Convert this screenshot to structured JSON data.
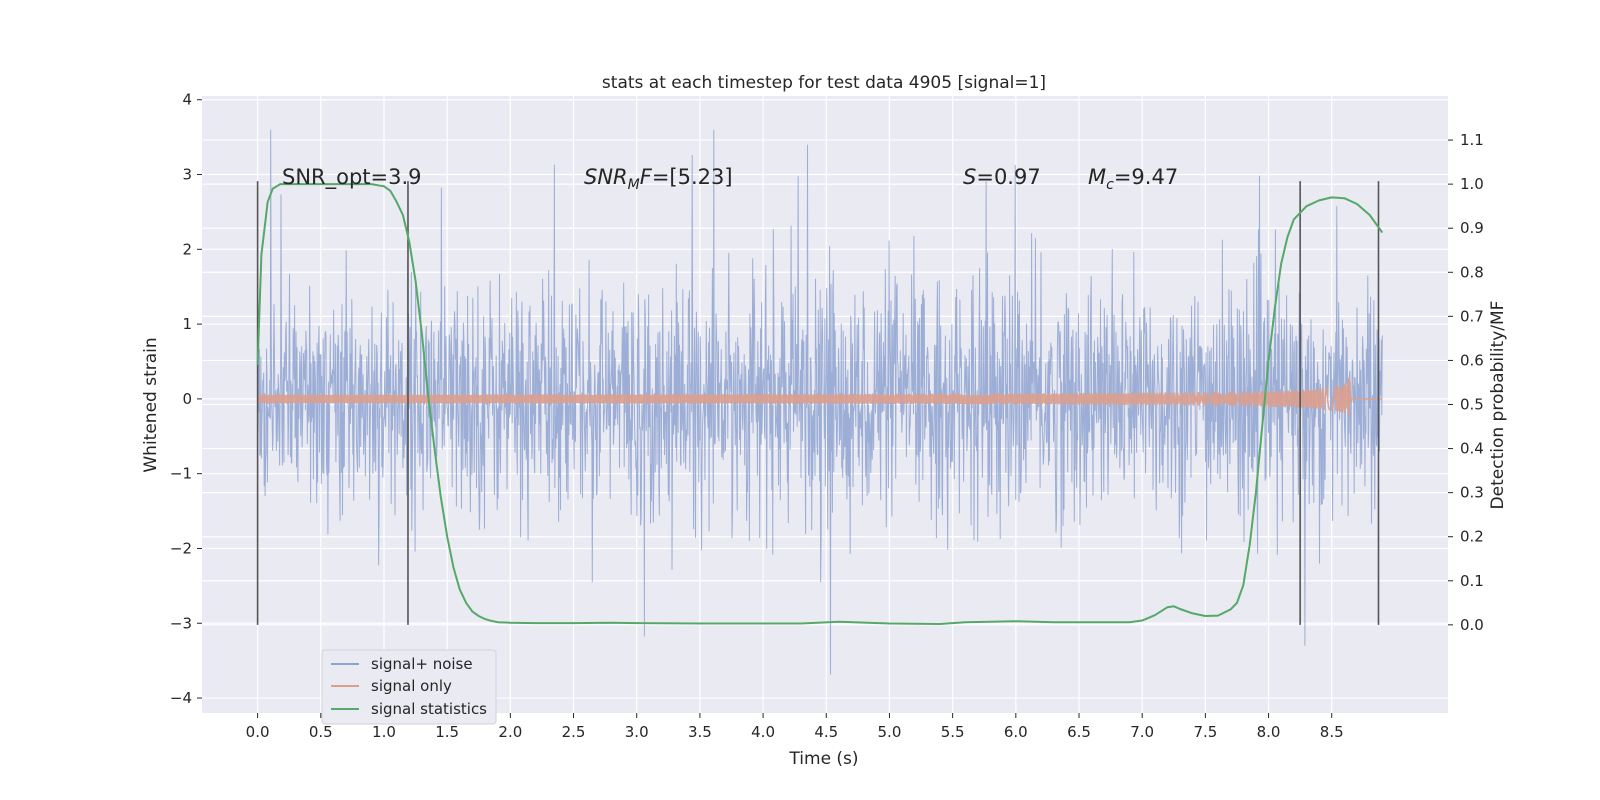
{
  "chart_data": {
    "type": "line",
    "title": "stats at each timestep for test data 4905 [signal=1]",
    "xlabel": "Time (s)",
    "ylabel": "Whitened strain",
    "ylabel_right": "Detection probability/MF",
    "xlim": [
      -0.44,
      9.42
    ],
    "ylim": [
      -4.2,
      4.05
    ],
    "ylim_right": [
      -0.2,
      1.2
    ],
    "x_ticks": [
      0.0,
      0.5,
      1.0,
      1.5,
      2.0,
      2.5,
      3.0,
      3.5,
      4.0,
      4.5,
      5.0,
      5.5,
      6.0,
      6.5,
      7.0,
      7.5,
      8.0,
      8.5
    ],
    "x_tick_labels": [
      "0.0",
      "0.5",
      "1.0",
      "1.5",
      "2.0",
      "2.5",
      "3.0",
      "3.5",
      "4.0",
      "4.5",
      "5.0",
      "5.5",
      "6.0",
      "6.5",
      "7.0",
      "7.5",
      "8.0",
      "8.5"
    ],
    "y_ticks": [
      -4,
      -3,
      -2,
      -1,
      0,
      1,
      2,
      3,
      4
    ],
    "y_tick_labels": [
      "−4",
      "−3",
      "−2",
      "−1",
      "0",
      "1",
      "2",
      "3",
      "4"
    ],
    "y_ticks_right": [
      0.0,
      0.1,
      0.2,
      0.3,
      0.4,
      0.5,
      0.6,
      0.7,
      0.8,
      0.9,
      1.0,
      1.1
    ],
    "y_tick_labels_right": [
      "0.0",
      "0.1",
      "0.2",
      "0.3",
      "0.4",
      "0.5",
      "0.6",
      "0.7",
      "0.8",
      "0.9",
      "1.0",
      "1.1"
    ],
    "grid": true,
    "legend_position": "bottom-left",
    "series": [
      {
        "name": "signal+ noise",
        "axis": "left",
        "color": "#8fa3d1",
        "kind": "noise",
        "x_range": [
          0.0,
          8.9
        ],
        "typical_range": [
          -1.3,
          1.3
        ],
        "extremes": [
          -4.0,
          3.6
        ]
      },
      {
        "name": "signal only",
        "axis": "left",
        "color": "#dc9f8e",
        "kind": "chirp",
        "x_range": [
          0.0,
          8.9
        ],
        "merger_time": 8.65,
        "peak_amplitude": 0.6
      },
      {
        "name": "signal statistics",
        "axis": "right",
        "color": "#55a868",
        "kind": "line",
        "x": [
          0.0,
          0.03,
          0.08,
          0.12,
          0.18,
          0.3,
          0.5,
          0.7,
          0.9,
          1.0,
          1.05,
          1.1,
          1.15,
          1.2,
          1.25,
          1.3,
          1.35,
          1.4,
          1.45,
          1.5,
          1.55,
          1.6,
          1.65,
          1.7,
          1.75,
          1.8,
          1.85,
          1.9,
          2.0,
          2.2,
          2.5,
          2.8,
          3.0,
          3.5,
          4.0,
          4.3,
          4.6,
          5.0,
          5.4,
          5.6,
          6.0,
          6.3,
          6.6,
          6.9,
          7.0,
          7.1,
          7.2,
          7.25,
          7.3,
          7.4,
          7.5,
          7.6,
          7.7,
          7.75,
          7.8,
          7.85,
          7.9,
          7.95,
          8.0,
          8.05,
          8.1,
          8.15,
          8.2,
          8.3,
          8.4,
          8.5,
          8.6,
          8.7,
          8.8,
          8.9
        ],
        "y": [
          0.59,
          0.84,
          0.96,
          0.99,
          1.0,
          1.0,
          1.0,
          1.0,
          1.0,
          0.995,
          0.985,
          0.96,
          0.93,
          0.87,
          0.78,
          0.66,
          0.52,
          0.4,
          0.29,
          0.2,
          0.13,
          0.08,
          0.05,
          0.03,
          0.02,
          0.013,
          0.009,
          0.006,
          0.005,
          0.004,
          0.004,
          0.005,
          0.004,
          0.003,
          0.003,
          0.003,
          0.007,
          0.003,
          0.002,
          0.006,
          0.008,
          0.006,
          0.006,
          0.006,
          0.01,
          0.022,
          0.04,
          0.042,
          0.036,
          0.026,
          0.02,
          0.021,
          0.035,
          0.05,
          0.09,
          0.18,
          0.3,
          0.45,
          0.6,
          0.72,
          0.82,
          0.88,
          0.92,
          0.95,
          0.963,
          0.97,
          0.968,
          0.955,
          0.93,
          0.89
        ]
      }
    ],
    "vlines": [
      0.0,
      1.19,
      8.25,
      8.87
    ],
    "annotations": [
      {
        "x": 0.2,
        "prefix": "SNR_opt=",
        "value": "3.9"
      },
      {
        "x": 2.6,
        "symbol": "SNR",
        "sub": "M",
        "after_sub": "F",
        "value": "=[5.23]"
      },
      {
        "x": 5.6,
        "symbol": "S",
        "value": "=0.97"
      },
      {
        "x": 6.6,
        "symbol": "M",
        "sub": "c",
        "value": "=9.47"
      }
    ]
  }
}
